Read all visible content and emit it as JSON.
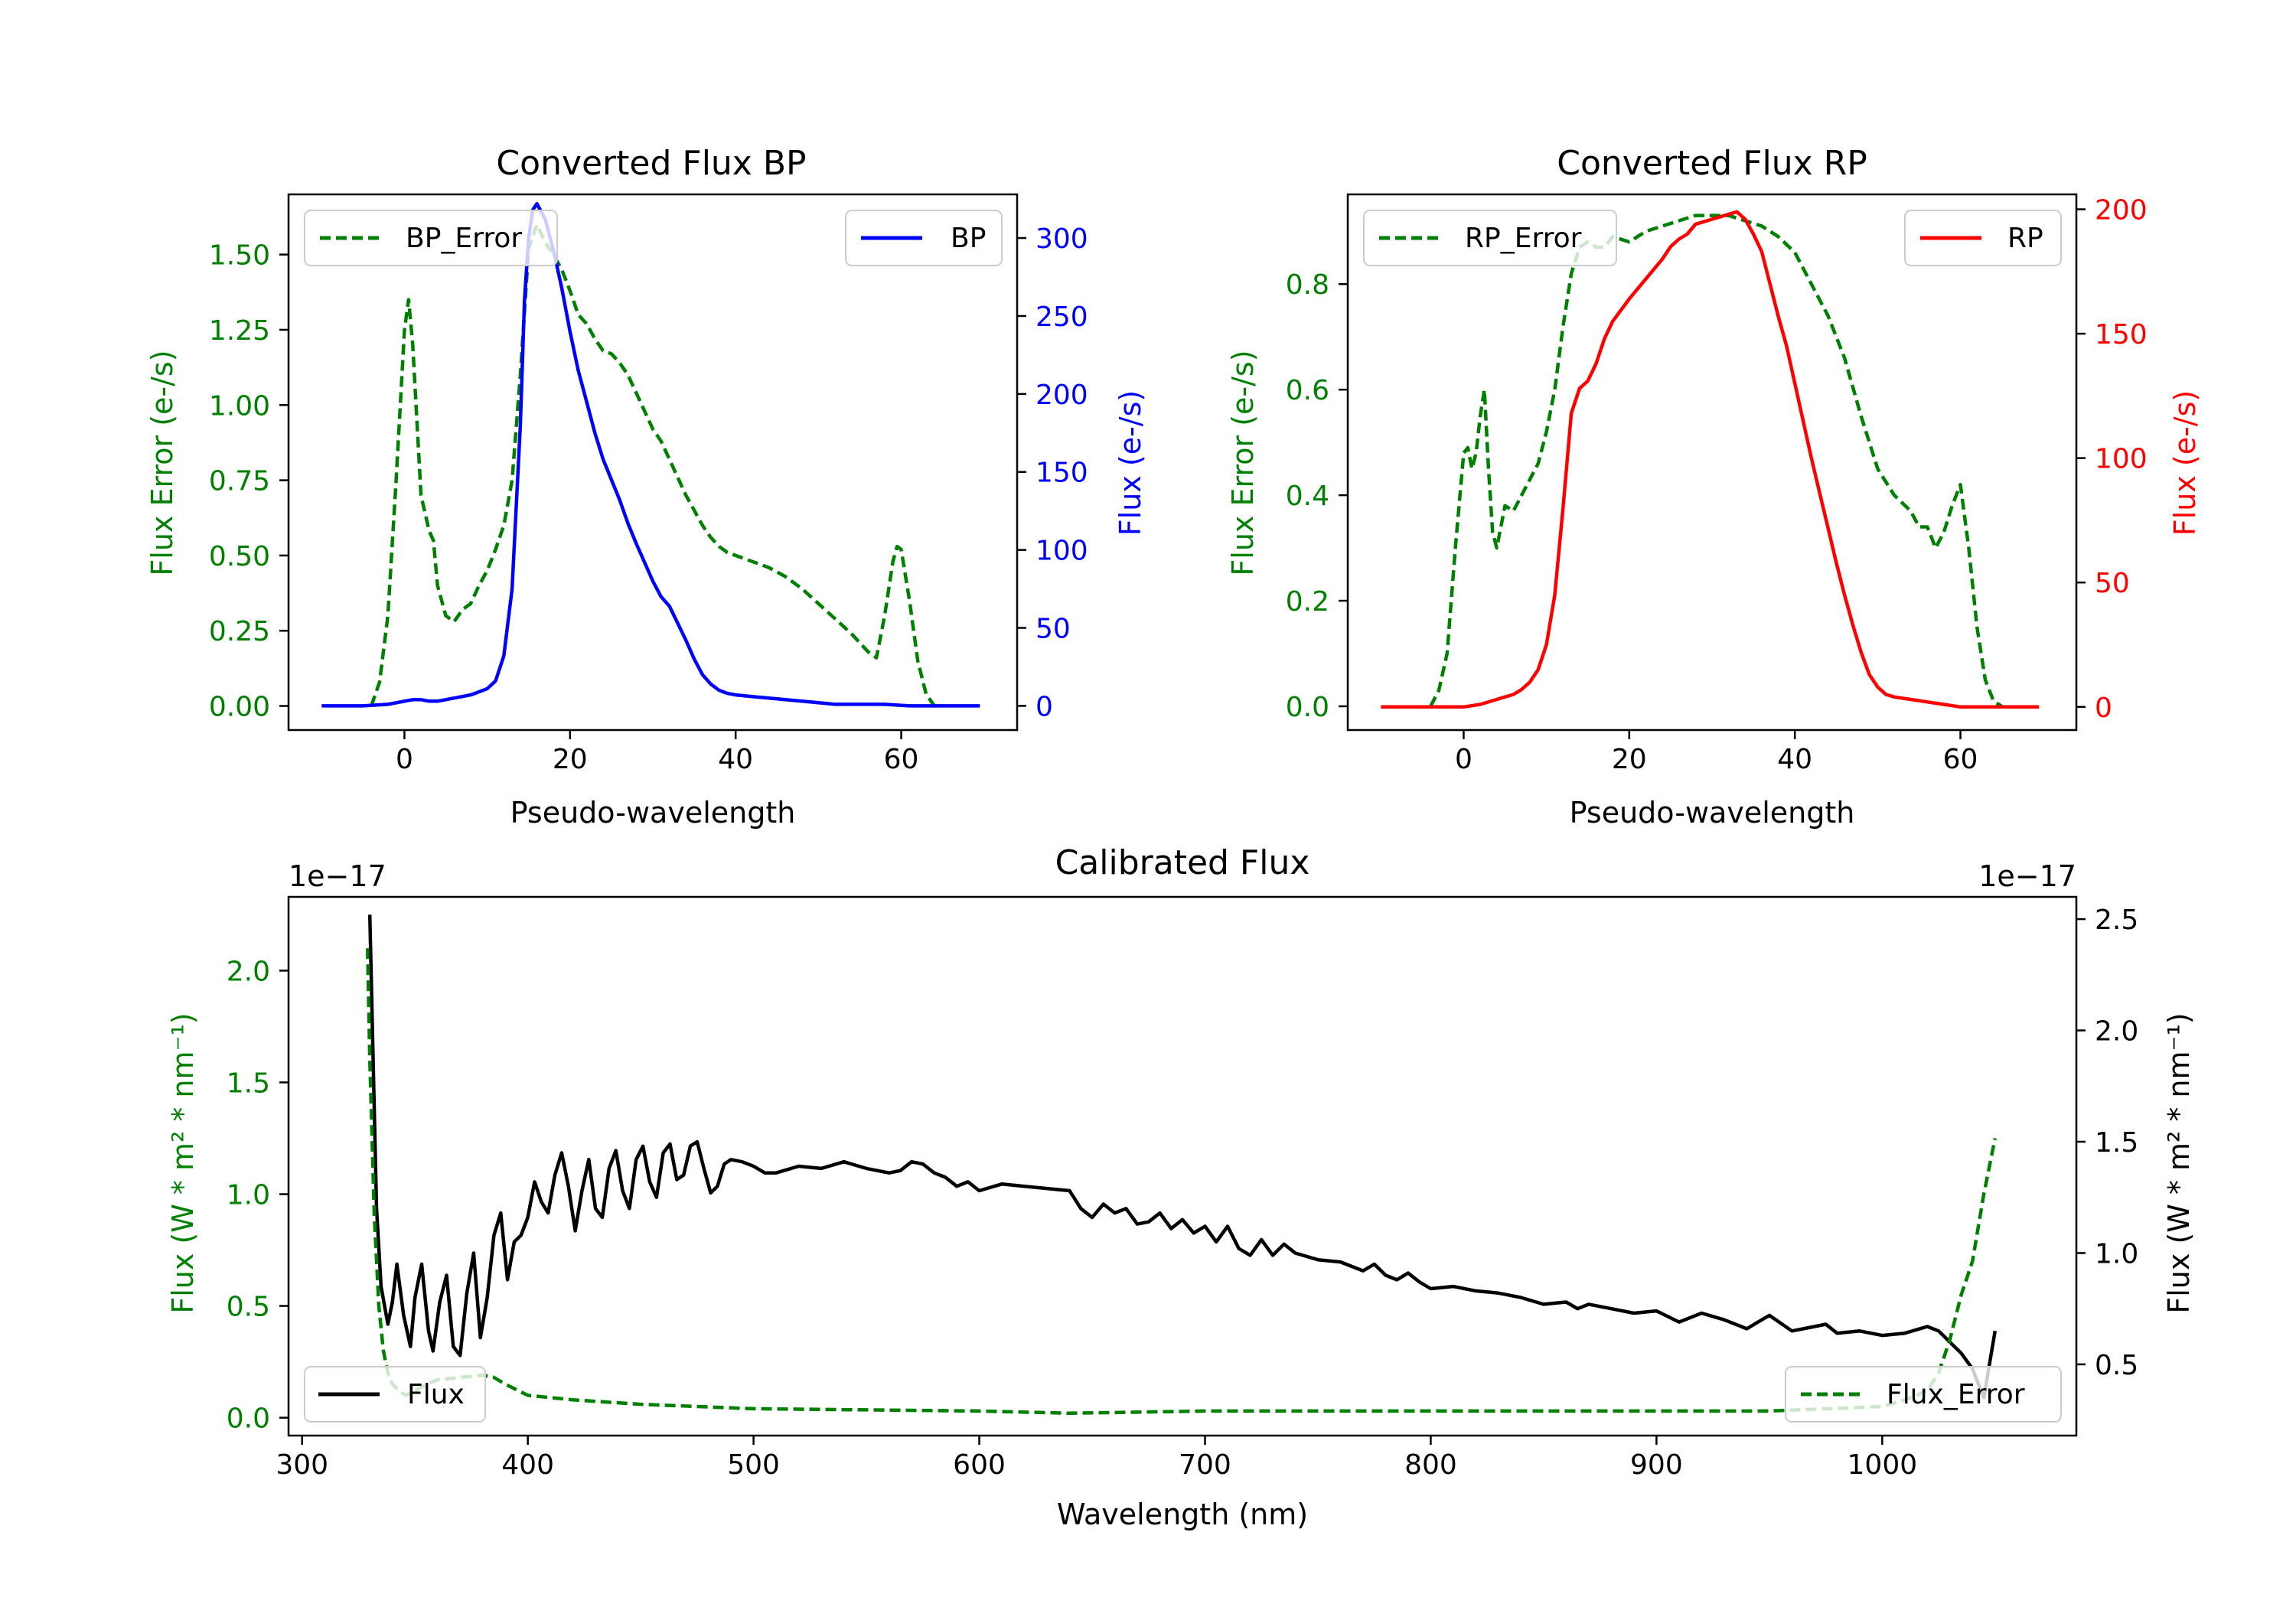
{
  "chart_data": [
    {
      "type": "line",
      "title": "Converted Flux BP",
      "xlabel": "Pseudo-wavelength",
      "ylabel_left": "Flux Error (e-/s)",
      "ylabel_right": "Flux (e-/s)",
      "xlim": [
        -14,
        74
      ],
      "ylim_left": [
        -0.08,
        1.7
      ],
      "ylim_right": [
        -15.5,
        328
      ],
      "xticks": [
        0,
        20,
        40,
        60
      ],
      "xtick_labels": [
        "0",
        "20",
        "40",
        "60"
      ],
      "yticks_left": [
        0,
        0.25,
        0.5,
        0.75,
        1.0,
        1.25,
        1.5
      ],
      "ytick_labels_left": [
        "0.00",
        "0.25",
        "0.50",
        "0.75",
        "1.00",
        "1.25",
        "1.50"
      ],
      "yticks_right": [
        0,
        50,
        100,
        150,
        200,
        250,
        300
      ],
      "ytick_labels_right": [
        "0",
        "50",
        "100",
        "150",
        "200",
        "250",
        "300"
      ],
      "left_color": "#008000",
      "right_color": "#0000ff",
      "series": [
        {
          "name": "BP_Error",
          "axis": "left",
          "style": "dashed",
          "color": "#008000",
          "x": [
            -4,
            -3,
            -2,
            -1,
            0,
            0.5,
            1,
            2,
            3,
            3.5,
            4,
            5,
            6,
            7,
            8,
            9,
            10,
            11,
            12,
            13,
            14,
            15,
            16,
            17,
            18,
            19,
            20,
            21,
            22,
            23,
            24,
            25,
            26,
            27,
            28,
            29,
            30,
            31,
            32,
            33,
            34,
            35,
            36,
            37,
            38,
            39,
            40,
            42,
            44,
            46,
            48,
            50,
            52,
            54,
            56,
            57,
            58,
            59,
            59.5,
            60,
            61,
            62,
            63,
            64,
            65
          ],
          "y": [
            0.0,
            0.08,
            0.3,
            0.75,
            1.25,
            1.35,
            1.2,
            0.7,
            0.58,
            0.55,
            0.4,
            0.3,
            0.28,
            0.32,
            0.34,
            0.4,
            0.45,
            0.52,
            0.6,
            0.75,
            1.1,
            1.52,
            1.6,
            1.54,
            1.5,
            1.45,
            1.38,
            1.3,
            1.27,
            1.22,
            1.18,
            1.17,
            1.14,
            1.1,
            1.04,
            0.98,
            0.92,
            0.88,
            0.82,
            0.76,
            0.7,
            0.65,
            0.6,
            0.56,
            0.53,
            0.51,
            0.5,
            0.48,
            0.46,
            0.43,
            0.39,
            0.34,
            0.29,
            0.24,
            0.18,
            0.16,
            0.3,
            0.48,
            0.53,
            0.52,
            0.35,
            0.15,
            0.04,
            0.0,
            0.0
          ]
        },
        {
          "name": "BP",
          "axis": "right",
          "style": "solid",
          "color": "#0000ff",
          "x": [
            -10,
            -5,
            -2,
            0,
            1,
            2,
            3,
            4,
            5,
            6,
            7,
            8,
            9,
            10,
            11,
            12,
            13,
            14,
            14.5,
            15,
            15.5,
            16,
            17,
            18,
            19,
            20,
            21,
            22,
            23,
            24,
            25,
            26,
            27,
            28,
            29,
            30,
            31,
            32,
            33,
            34,
            35,
            36,
            37,
            38,
            39,
            40,
            42,
            44,
            46,
            48,
            50,
            52,
            55,
            58,
            61,
            64,
            67,
            69.5
          ],
          "y": [
            0,
            0,
            1,
            3,
            4,
            4,
            3,
            3,
            4,
            5,
            6,
            7,
            9,
            11,
            16,
            32,
            75,
            180,
            260,
            300,
            318,
            322,
            312,
            292,
            268,
            240,
            215,
            195,
            175,
            158,
            145,
            132,
            117,
            104,
            92,
            80,
            70,
            64,
            53,
            42,
            30,
            20,
            14,
            10,
            8,
            7,
            6,
            5,
            4,
            3,
            2,
            1,
            1,
            1,
            0,
            0,
            0,
            0
          ]
        }
      ],
      "legend": [
        {
          "label": "BP_Error",
          "location": "upper left"
        },
        {
          "label": "BP",
          "location": "upper right"
        }
      ]
    },
    {
      "type": "line",
      "title": "Converted Flux RP",
      "xlabel": "Pseudo-wavelength",
      "ylabel_left": "Flux Error (e-/s)",
      "ylabel_right": "Flux (e-/s)",
      "xlim": [
        -14,
        74
      ],
      "ylim_left": [
        -0.045,
        0.97
      ],
      "ylim_right": [
        -9.3,
        206
      ],
      "xticks": [
        0,
        20,
        40,
        60
      ],
      "xtick_labels": [
        "0",
        "20",
        "40",
        "60"
      ],
      "yticks_left": [
        0,
        0.2,
        0.4,
        0.6,
        0.8
      ],
      "ytick_labels_left": [
        "0.0",
        "0.2",
        "0.4",
        "0.6",
        "0.8"
      ],
      "yticks_right": [
        0,
        50,
        100,
        150,
        200
      ],
      "ytick_labels_right": [
        "0",
        "50",
        "100",
        "150",
        "200"
      ],
      "left_color": "#008000",
      "right_color": "#ff0000",
      "series": [
        {
          "name": "RP_Error",
          "axis": "left",
          "style": "dashed",
          "color": "#008000",
          "x": [
            -4,
            -3,
            -2,
            -1,
            0,
            0.5,
            1,
            1.5,
            2,
            2.5,
            3,
            3.5,
            4,
            5,
            6,
            7,
            8,
            9,
            10,
            11,
            12,
            13,
            14,
            15,
            16,
            17,
            18,
            20,
            22,
            24,
            26,
            28,
            30,
            32,
            34,
            36,
            38,
            40,
            42,
            44,
            46,
            48,
            50,
            52,
            54,
            55,
            56,
            57,
            58,
            59,
            60,
            61,
            62,
            63,
            64,
            65
          ],
          "y": [
            0.0,
            0.03,
            0.1,
            0.3,
            0.48,
            0.49,
            0.45,
            0.48,
            0.55,
            0.6,
            0.45,
            0.33,
            0.3,
            0.38,
            0.37,
            0.4,
            0.43,
            0.46,
            0.52,
            0.6,
            0.72,
            0.82,
            0.87,
            0.88,
            0.87,
            0.87,
            0.89,
            0.88,
            0.9,
            0.91,
            0.92,
            0.93,
            0.93,
            0.93,
            0.92,
            0.91,
            0.89,
            0.86,
            0.8,
            0.74,
            0.66,
            0.55,
            0.45,
            0.4,
            0.37,
            0.34,
            0.34,
            0.3,
            0.33,
            0.38,
            0.42,
            0.3,
            0.15,
            0.05,
            0.01,
            0.0
          ],
          "dash_note": "dashed"
        },
        {
          "name": "RP",
          "axis": "right",
          "style": "solid",
          "color": "#ff0000",
          "x": [
            -10,
            -2,
            0,
            2,
            4,
            6,
            7,
            8,
            9,
            10,
            11,
            12,
            13,
            14,
            15,
            16,
            17,
            18,
            20,
            22,
            24,
            25,
            26,
            27,
            28,
            29,
            30,
            31,
            32,
            33,
            34,
            35,
            36,
            37,
            38,
            39,
            40,
            41,
            42,
            43,
            44,
            45,
            46,
            47,
            48,
            49,
            50,
            51,
            52,
            54,
            56,
            58,
            60,
            62,
            65,
            69.5
          ],
          "y": [
            0,
            0,
            0,
            1,
            3,
            5,
            7,
            10,
            15,
            25,
            45,
            80,
            118,
            128,
            131,
            138,
            148,
            155,
            164,
            172,
            180,
            185,
            188,
            190,
            194,
            195,
            196,
            197,
            198,
            199,
            196,
            190,
            183,
            170,
            157,
            145,
            130,
            115,
            100,
            86,
            72,
            58,
            45,
            33,
            22,
            13,
            8,
            5,
            4,
            3,
            2,
            1,
            0,
            0,
            0,
            0
          ]
        }
      ],
      "legend": [
        {
          "label": "RP_Error",
          "location": "upper left"
        },
        {
          "label": "RP",
          "location": "upper right"
        }
      ]
    },
    {
      "type": "line",
      "title": "Calibrated Flux",
      "xlabel": "Wavelength (nm)",
      "ylabel_left": "Flux (W * m² * nm⁻¹)",
      "ylabel_right": "Flux (W * m² * nm⁻¹)",
      "offset_left": "1e−17",
      "offset_right": "1e−17",
      "xlim": [
        294,
        1086
      ],
      "ylim_left": [
        -0.08,
        2.33
      ],
      "ylim_right": [
        0.18,
        2.6
      ],
      "xticks": [
        300,
        400,
        500,
        600,
        700,
        800,
        900,
        1000
      ],
      "xtick_labels": [
        "300",
        "400",
        "500",
        "600",
        "700",
        "800",
        "900",
        "1000"
      ],
      "yticks_left": [
        0,
        0.5,
        1.0,
        1.5,
        2.0
      ],
      "ytick_labels_left": [
        "0.0",
        "0.5",
        "1.0",
        "1.5",
        "2.0"
      ],
      "yticks_right": [
        0.5,
        1.0,
        1.5,
        2.0,
        2.5
      ],
      "ytick_labels_right": [
        "0.5",
        "1.0",
        "1.5",
        "2.0",
        "2.5"
      ],
      "left_color": "#008000",
      "right_color": "#000000",
      "series": [
        {
          "name": "Flux",
          "axis": "right",
          "style": "solid",
          "color": "#000000",
          "x": [
            330,
            333,
            335,
            338,
            340,
            342,
            345,
            348,
            350,
            353,
            356,
            358,
            361,
            364,
            367,
            370,
            373,
            376,
            379,
            382,
            385,
            388,
            391,
            394,
            397,
            400,
            403,
            406,
            409,
            412,
            415,
            418,
            421,
            424,
            427,
            430,
            433,
            436,
            439,
            442,
            445,
            448,
            451,
            454,
            457,
            460,
            463,
            466,
            469,
            472,
            475,
            478,
            481,
            484,
            487,
            490,
            495,
            500,
            505,
            510,
            520,
            530,
            540,
            550,
            560,
            565,
            570,
            575,
            580,
            585,
            590,
            595,
            600,
            610,
            620,
            630,
            640,
            645,
            650,
            655,
            660,
            665,
            670,
            675,
            680,
            685,
            690,
            695,
            700,
            705,
            710,
            715,
            720,
            725,
            730,
            735,
            740,
            750,
            760,
            770,
            775,
            780,
            785,
            790,
            795,
            800,
            810,
            820,
            830,
            840,
            850,
            860,
            865,
            870,
            880,
            890,
            900,
            910,
            915,
            920,
            930,
            940,
            945,
            950,
            960,
            970,
            975,
            980,
            990,
            1000,
            1010,
            1020,
            1025,
            1030,
            1035,
            1040,
            1045,
            1050
          ],
          "y": [
            2.52,
            1.2,
            0.85,
            0.68,
            0.78,
            0.95,
            0.72,
            0.58,
            0.8,
            0.95,
            0.65,
            0.56,
            0.78,
            0.9,
            0.58,
            0.54,
            0.82,
            1.0,
            0.62,
            0.8,
            1.08,
            1.18,
            0.88,
            1.05,
            1.08,
            1.16,
            1.32,
            1.23,
            1.18,
            1.35,
            1.45,
            1.3,
            1.1,
            1.28,
            1.42,
            1.2,
            1.16,
            1.38,
            1.46,
            1.28,
            1.2,
            1.42,
            1.48,
            1.32,
            1.25,
            1.45,
            1.49,
            1.33,
            1.35,
            1.48,
            1.5,
            1.38,
            1.27,
            1.3,
            1.4,
            1.42,
            1.41,
            1.39,
            1.36,
            1.36,
            1.39,
            1.38,
            1.41,
            1.38,
            1.36,
            1.37,
            1.41,
            1.4,
            1.36,
            1.34,
            1.3,
            1.32,
            1.28,
            1.31,
            1.3,
            1.29,
            1.28,
            1.2,
            1.16,
            1.22,
            1.18,
            1.2,
            1.13,
            1.14,
            1.18,
            1.11,
            1.15,
            1.09,
            1.12,
            1.05,
            1.12,
            1.02,
            0.99,
            1.06,
            0.99,
            1.04,
            1.0,
            0.97,
            0.96,
            0.92,
            0.95,
            0.9,
            0.88,
            0.91,
            0.87,
            0.84,
            0.85,
            0.83,
            0.82,
            0.8,
            0.77,
            0.78,
            0.75,
            0.77,
            0.75,
            0.73,
            0.74,
            0.69,
            0.71,
            0.73,
            0.7,
            0.66,
            0.69,
            0.72,
            0.65,
            0.67,
            0.68,
            0.64,
            0.65,
            0.63,
            0.64,
            0.67,
            0.65,
            0.6,
            0.55,
            0.48,
            0.35,
            0.65
          ],
          "note": "values in units of 1e-17"
        },
        {
          "name": "Flux_Error",
          "axis": "left",
          "style": "dashed",
          "color": "#008000",
          "x": [
            329,
            330,
            332,
            334,
            336,
            338,
            340,
            343,
            346,
            350,
            355,
            360,
            370,
            380,
            385,
            390,
            400,
            420,
            450,
            500,
            600,
            640,
            700,
            800,
            900,
            950,
            1000,
            1010,
            1020,
            1025,
            1030,
            1035,
            1040,
            1045,
            1050
          ],
          "y": [
            2.1,
            1.6,
            0.9,
            0.5,
            0.3,
            0.2,
            0.15,
            0.12,
            0.1,
            0.12,
            0.15,
            0.17,
            0.18,
            0.19,
            0.18,
            0.15,
            0.1,
            0.08,
            0.06,
            0.04,
            0.03,
            0.02,
            0.03,
            0.03,
            0.03,
            0.03,
            0.05,
            0.08,
            0.12,
            0.2,
            0.35,
            0.55,
            0.7,
            1.0,
            1.25
          ],
          "note": "values in units of 1e-17"
        }
      ],
      "legend": [
        {
          "label": "Flux",
          "location": "lower left"
        },
        {
          "label": "Flux_Error",
          "location": "lower right"
        }
      ]
    }
  ]
}
